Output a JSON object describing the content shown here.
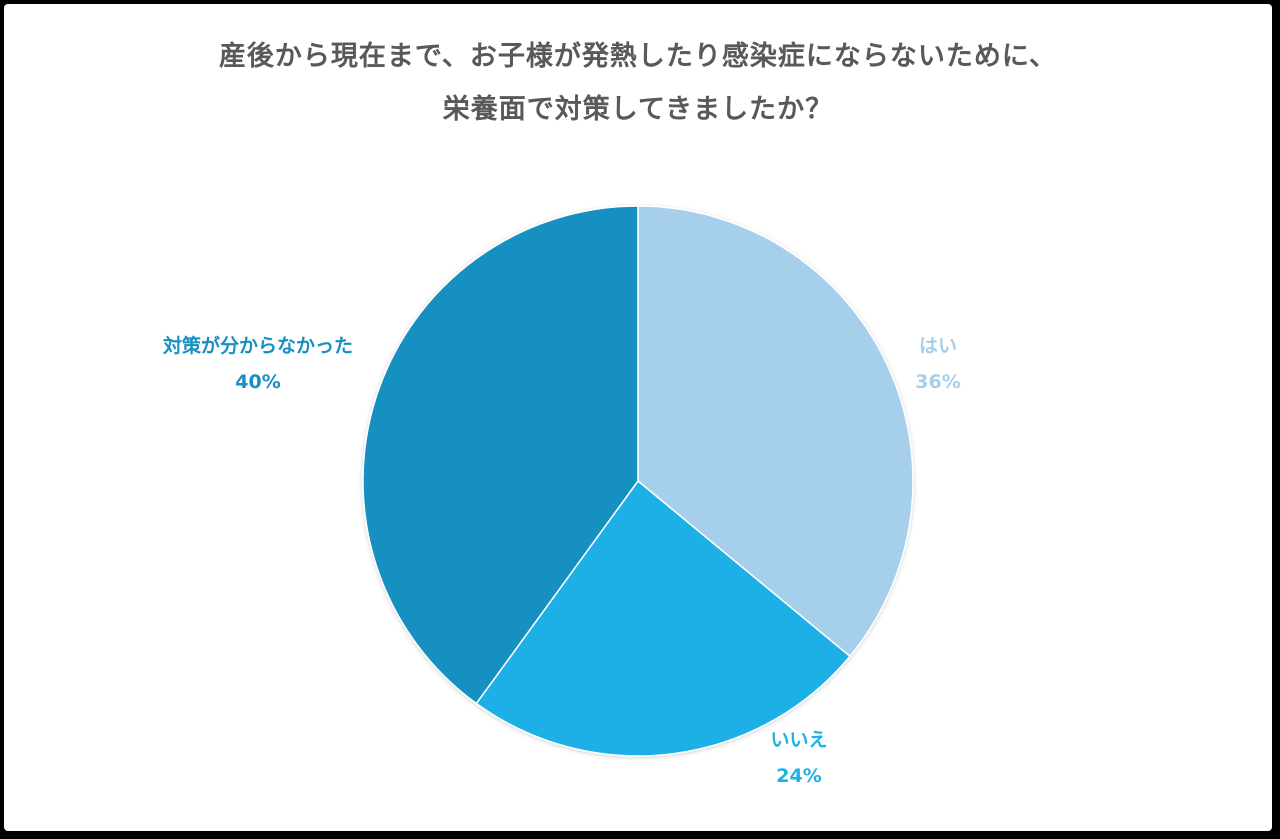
{
  "chart_data": {
    "type": "pie",
    "title_lines": [
      "産後から現在まで、お子様が発熱したり感染症にならないために、",
      "栄養面で対策してきましたか？"
    ],
    "slices": [
      {
        "label": "はい",
        "value": 36,
        "value_label": "36%",
        "color": "#a6cfec"
      },
      {
        "label": "いいえ",
        "value": 24,
        "value_label": "24%",
        "color": "#1fb0e6"
      },
      {
        "label": "対策が分からなかった",
        "value": 40,
        "value_label": "40%",
        "color": "#178fc1"
      }
    ]
  }
}
